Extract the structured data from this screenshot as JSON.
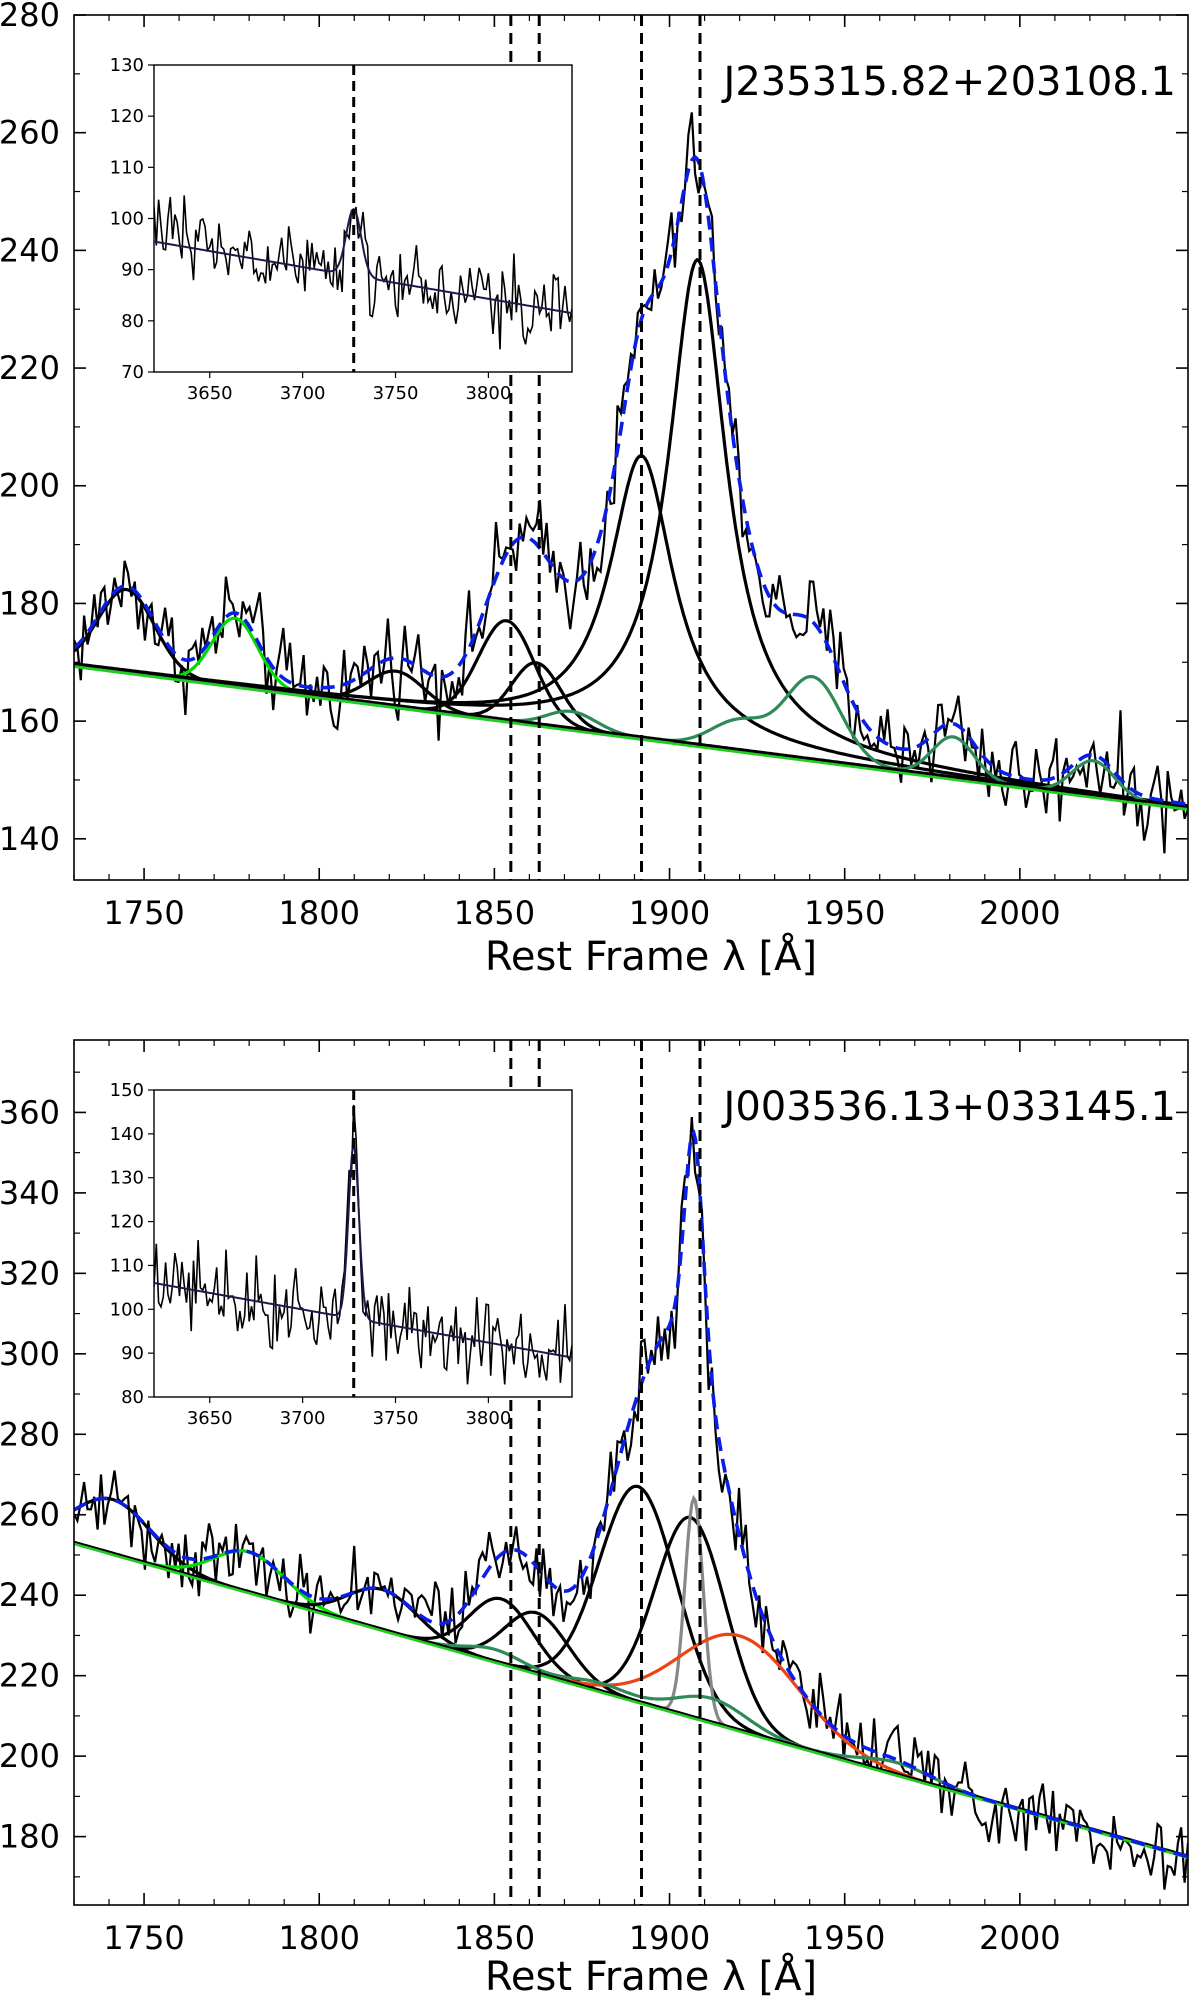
{
  "chart_data": [
    {
      "type": "line",
      "title": "J235315.82+203108.1",
      "xlabel": "Rest Frame λ [Å]",
      "ylabel": "",
      "xlim": [
        1730,
        2048
      ],
      "ylim": [
        133,
        280
      ],
      "xticks": [
        1750,
        1800,
        1850,
        1900,
        1950,
        2000
      ],
      "yticks": [
        140,
        160,
        180,
        200,
        220,
        240,
        260,
        280
      ],
      "vlines": [
        1854.7,
        1862.8,
        1892.0,
        1908.7
      ],
      "continuum": {
        "x": [
          1730,
          2048
        ],
        "y": [
          169.5,
          145.2
        ]
      },
      "components": [
        {
          "color": "#000000",
          "peaks": [
            {
              "center": 1745,
              "amp": 14,
              "sigma": 8,
              "shape": "gauss"
            }
          ]
        },
        {
          "color": "#00dd00",
          "peaks": [
            {
              "center": 1776,
              "amp": 11.5,
              "sigma": 6.5,
              "shape": "gauss"
            }
          ]
        },
        {
          "color": "#000000",
          "peaks": [
            {
              "center": 1822,
              "amp": 6,
              "sigma": 8,
              "shape": "gauss"
            }
          ]
        },
        {
          "color": "#000000",
          "peaks": [
            {
              "center": 1853.5,
              "amp": 17,
              "sigma": 8,
              "shape": "gauss"
            }
          ]
        },
        {
          "color": "#000000",
          "peaks": [
            {
              "center": 1862,
              "amp": 10.5,
              "sigma": 7,
              "shape": "gauss"
            }
          ]
        },
        {
          "color": "#000000",
          "peaks": [
            {
              "center": 1892,
              "amp": 48,
              "sigma": 11,
              "shape": "lorentz"
            }
          ]
        },
        {
          "color": "#000000",
          "peaks": [
            {
              "center": 1908,
              "amp": 82.5,
              "sigma": 10,
              "shape": "lorentz"
            }
          ]
        },
        {
          "color": "#2e8b57",
          "peaks": [
            {
              "center": 1872,
              "amp": 3,
              "sigma": 7,
              "shape": "gauss"
            },
            {
              "center": 1920,
              "amp": 5,
              "sigma": 8,
              "shape": "gauss"
            },
            {
              "center": 1941,
              "amp": 14,
              "sigma": 8,
              "shape": "gauss"
            },
            {
              "center": 1981,
              "amp": 7,
              "sigma": 6,
              "shape": "gauss"
            },
            {
              "center": 2021,
              "amp": 6,
              "sigma": 6,
              "shape": "gauss"
            }
          ]
        }
      ],
      "spectrum_noise": 4,
      "inset": {
        "xlim": [
          3620,
          3845
        ],
        "ylim": [
          70,
          130
        ],
        "xticks": [
          3650,
          3700,
          3750,
          3800
        ],
        "yticks": [
          70,
          80,
          90,
          100,
          110,
          120,
          130
        ],
        "vline": 3727.5,
        "continuum": {
          "x": [
            3620,
            3845
          ],
          "y": [
            95.5,
            81.5
          ]
        },
        "line": {
          "center": 3727.5,
          "amp": 13,
          "sigma": 4
        },
        "noise": 4
      }
    },
    {
      "type": "line",
      "title": "J003536.13+033145.1",
      "xlabel": "Rest Frame λ [Å]",
      "ylabel": "",
      "xlim": [
        1730,
        2048
      ],
      "ylim": [
        163,
        378
      ],
      "xticks": [
        1750,
        1800,
        1850,
        1900,
        1950,
        2000
      ],
      "yticks": [
        180,
        200,
        220,
        240,
        260,
        280,
        300,
        320,
        340,
        360
      ],
      "vlines": [
        1854.7,
        1862.8,
        1892.0,
        1908.7
      ],
      "continuum": {
        "x": [
          1730,
          2048
        ],
        "y": [
          253,
          175
        ]
      },
      "components": [
        {
          "color": "#000000",
          "peaks": [
            {
              "center": 1741,
              "amp": 13.5,
              "sigma": 11,
              "shape": "gauss"
            }
          ]
        },
        {
          "color": "#00dd00",
          "peaks": [
            {
              "center": 1780,
              "amp": 10,
              "sigma": 10,
              "shape": "gauss"
            }
          ]
        },
        {
          "color": "#000000",
          "peaks": [
            {
              "center": 1818,
              "amp": 10,
              "sigma": 10,
              "shape": "gauss"
            }
          ]
        },
        {
          "color": "#000000",
          "peaks": [
            {
              "center": 1852,
              "amp": 16,
              "sigma": 9,
              "shape": "gauss"
            }
          ]
        },
        {
          "color": "#000000",
          "peaks": [
            {
              "center": 1862,
              "amp": 15,
              "sigma": 9,
              "shape": "gauss"
            }
          ]
        },
        {
          "color": "#000000",
          "peaks": [
            {
              "center": 1891,
              "amp": 53.5,
              "sigma": 11,
              "shape": "gauss"
            }
          ]
        },
        {
          "color": "#000000",
          "peaks": [
            {
              "center": 1906,
              "amp": 49.5,
              "sigma": 10,
              "shape": "gauss"
            }
          ]
        },
        {
          "color": "#888888",
          "peaks": [
            {
              "center": 1907,
              "amp": 54.5,
              "sigma": 2.6,
              "shape": "gauss"
            }
          ]
        },
        {
          "color": "#ee4411",
          "peaks": [
            {
              "center": 1920,
              "amp": 23.5,
              "sigma": 17,
              "shape": "gauss"
            }
          ]
        },
        {
          "color": "#2e8b57",
          "peaks": [
            {
              "center": 1850,
              "amp": 3,
              "sigma": 8,
              "shape": "gauss"
            },
            {
              "center": 1880,
              "amp": 2,
              "sigma": 8,
              "shape": "gauss"
            },
            {
              "center": 1912,
              "amp": 6,
              "sigma": 10,
              "shape": "gauss"
            },
            {
              "center": 1965,
              "amp": 3,
              "sigma": 10,
              "shape": "gauss"
            }
          ]
        }
      ],
      "spectrum_noise": 5,
      "inset": {
        "xlim": [
          3620,
          3845
        ],
        "ylim": [
          80,
          150
        ],
        "xticks": [
          3650,
          3700,
          3750,
          3800
        ],
        "yticks": [
          80,
          90,
          100,
          110,
          120,
          130,
          140,
          150
        ],
        "vline": 3727.5,
        "continuum": {
          "x": [
            3620,
            3845
          ],
          "y": [
            106,
            89
          ]
        },
        "line": {
          "center": 3727.5,
          "amp": 39.5,
          "sigma": 2.8
        },
        "noise": 5
      }
    }
  ],
  "colors": {
    "model": "#0a1ee6",
    "spectrum": "#000000",
    "continuum": "#22cc22",
    "inset_fit": "#1a1a4a"
  }
}
